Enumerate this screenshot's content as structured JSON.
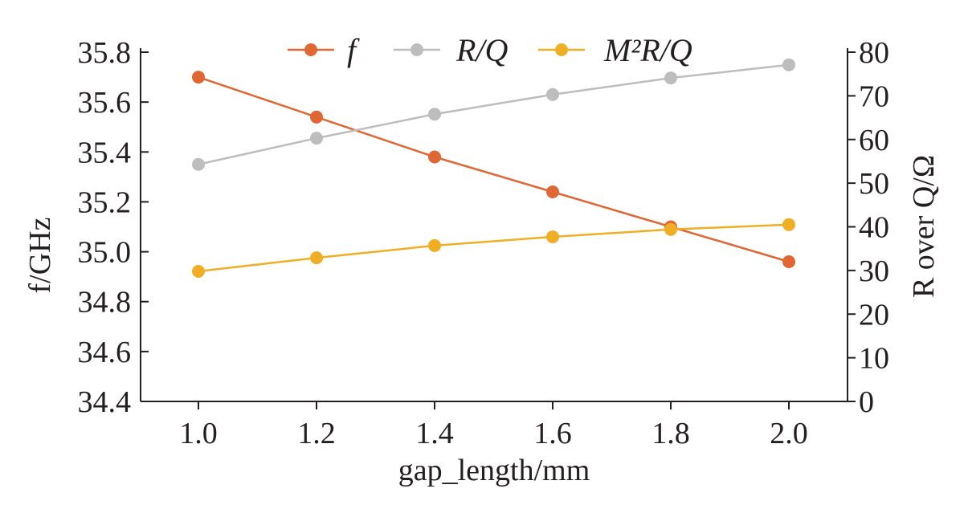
{
  "chart_data": {
    "type": "line",
    "title": "",
    "xlabel": "gap_length/mm",
    "ylabel": "f/GHz",
    "ylabel_right": "R over Q/Ω",
    "x": [
      1.0,
      1.2,
      1.4,
      1.6,
      1.8,
      2.0
    ],
    "x_tick_labels": [
      "1.0",
      "1.2",
      "1.4",
      "1.6",
      "1.8",
      "2.0"
    ],
    "xlim": [
      0.9,
      2.1
    ],
    "ylim": [
      34.4,
      35.8
    ],
    "y_tick_labels": [
      "34.4",
      "34.6",
      "34.8",
      "35.0",
      "35.2",
      "35.4",
      "35.6",
      "35.8"
    ],
    "ylim_right": [
      0,
      80
    ],
    "y_right_tick_labels": [
      "0",
      "10",
      "20",
      "30",
      "40",
      "50",
      "60",
      "70",
      "80"
    ],
    "grid": false,
    "legend_position": "top-center",
    "series": [
      {
        "name": "f",
        "axis": "left",
        "color": "#E06634",
        "values": [
          35.7,
          35.54,
          35.38,
          35.24,
          35.1,
          34.96
        ]
      },
      {
        "name": "R/Q",
        "axis": "right",
        "color": "#BDBDBD",
        "values": [
          54.3,
          60.3,
          65.8,
          70.3,
          74.1,
          77.1
        ]
      },
      {
        "name": "M²R/Q",
        "axis": "right",
        "color": "#F0AE25",
        "values": [
          29.8,
          32.9,
          35.7,
          37.7,
          39.4,
          40.5
        ]
      }
    ]
  }
}
